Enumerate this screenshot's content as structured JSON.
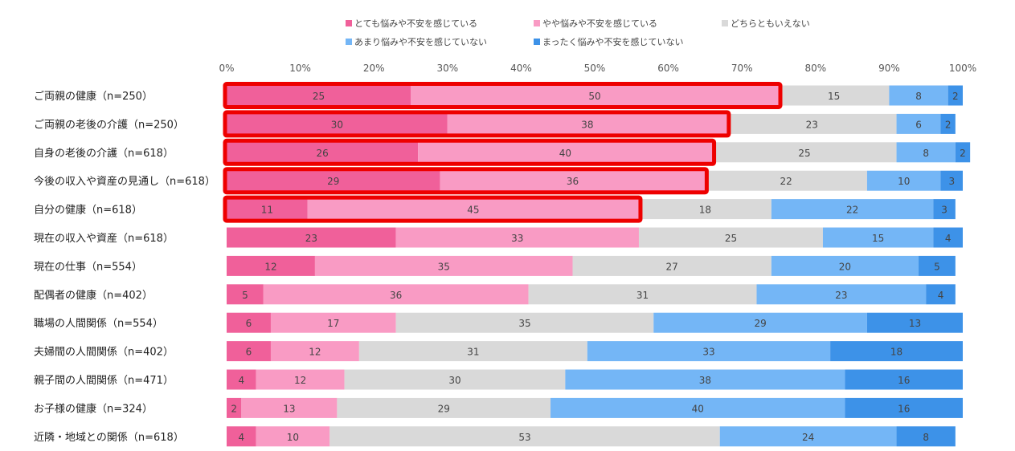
{
  "chart_data": {
    "type": "bar",
    "orientation": "horizontal",
    "stacked": "percent",
    "title": "",
    "xlabel": "",
    "ylabel": "",
    "xlim": [
      0,
      100
    ],
    "ticks": [
      "0%",
      "10%",
      "20%",
      "30%",
      "40%",
      "50%",
      "60%",
      "70%",
      "80%",
      "90%",
      "100%"
    ],
    "legend_position": "top",
    "categories": [
      "ご両親の健康（n=250）",
      "ご両親の老後の介護（n=250）",
      "自身の老後の介護（n=618）",
      "今後の収入や資産の見通し（n=618）",
      "自分の健康（n=618）",
      "現在の収入や資産（n=618）",
      "現在の仕事（n=554）",
      "配偶者の健康（n=402）",
      "職場の人間関係（n=554）",
      "夫婦間の人間関係（n=402）",
      "親子間の人間関係（n=471）",
      "お子様の健康（n=324）",
      "近隣・地域との関係（n=618）"
    ],
    "series": [
      {
        "name": "とても悩みや不安を感じている",
        "color": "#f0609a",
        "values": [
          25,
          30,
          26,
          29,
          11,
          23,
          12,
          5,
          6,
          6,
          4,
          2,
          4
        ]
      },
      {
        "name": "やや悩みや不安を感じている",
        "color": "#f99bc4",
        "values": [
          50,
          38,
          40,
          36,
          45,
          33,
          35,
          36,
          17,
          12,
          12,
          13,
          10
        ]
      },
      {
        "name": "どちらともいえない",
        "color": "#d9d9d9",
        "values": [
          15,
          23,
          25,
          22,
          18,
          25,
          27,
          31,
          35,
          31,
          30,
          29,
          53
        ]
      },
      {
        "name": "あまり悩みや不安を感じていない",
        "color": "#74b6f6",
        "values": [
          8,
          6,
          8,
          10,
          22,
          15,
          20,
          23,
          29,
          33,
          38,
          40,
          24
        ]
      },
      {
        "name": "まったく悩みや不安を感じていない",
        "color": "#3d92e8",
        "values": [
          2,
          2,
          2,
          3,
          3,
          4,
          5,
          4,
          13,
          18,
          16,
          16,
          8
        ]
      }
    ],
    "highlighted_rows": [
      0,
      1,
      2,
      3,
      4
    ],
    "highlight_color": "#ee0000"
  }
}
